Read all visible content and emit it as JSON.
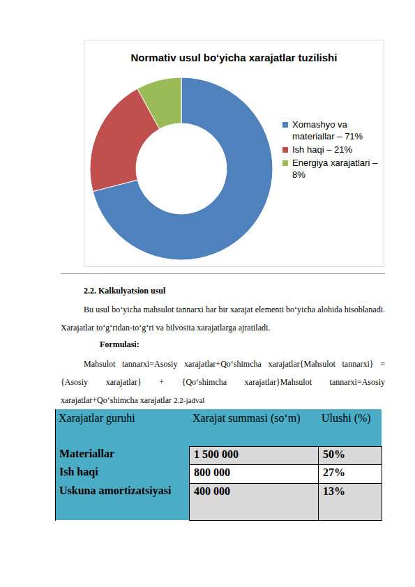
{
  "chart_data": {
    "type": "donut",
    "title": "Normativ usul bo‘yicha xarajatlar tuzilishi",
    "categories": [
      "Xomashyo va materiallar – 71%",
      "Ish haqi – 21%",
      "Energiya xarajatlari – 8%"
    ],
    "values": [
      71,
      21,
      8
    ],
    "colors": [
      "#4f81bd",
      "#c0504d",
      "#9bbb59"
    ],
    "legend": "right"
  },
  "section": {
    "heading": "2.2. Kalkulyatsion usul",
    "paragraphs": [
      "Bu usul bo‘yicha mahsulot tannarxi har bir xarajat elementi bo‘yicha alohida hisoblanadi. Xarajatlar to‘g‘ridan-to‘g‘ri va bilvosita xarajatlarga ajratiladi."
    ],
    "formula_label": "Formulasi:",
    "formula": "Mahsulot tannarxi=Asosiy xarajatlar+Qo‘shimcha xarajatlar{Mahsulot tannarxi} = {Asosiy xarajatlar} + {Qo‘shimcha xarajatlar}Mahsulot tannarxi=Asosiy xarajatlar+Qo‘shimcha xarajatlar"
  },
  "table": {
    "caption": "2.2-jadval",
    "header": [
      "Xarajatlar guruhi",
      "Xarajat summasi (so‘m)",
      "Ulushi (%)"
    ],
    "rows": [
      [
        "Materiallar",
        "1 500 000",
        "50%"
      ],
      [
        "Ish haqi",
        "800 000",
        "27%"
      ],
      [
        "Uskuna amortizatsiyasi",
        "400 000",
        "13%"
      ]
    ]
  }
}
